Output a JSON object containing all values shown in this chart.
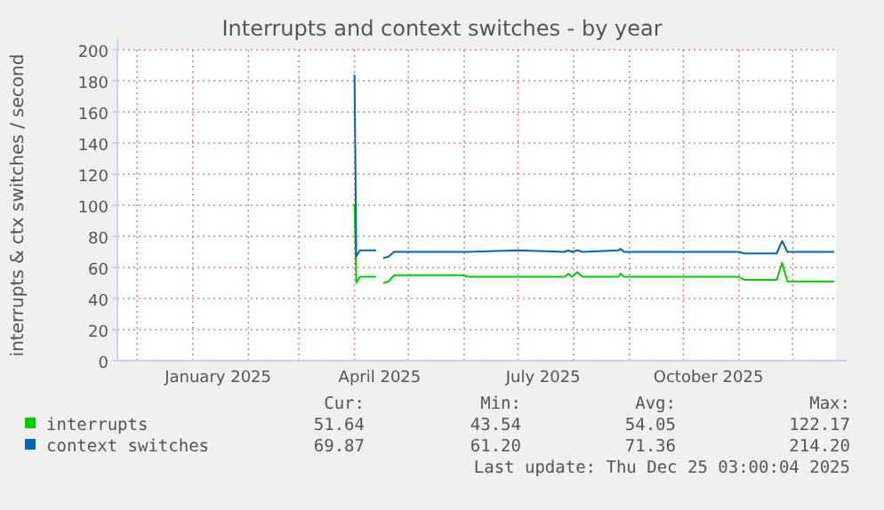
{
  "chart_data": {
    "type": "line",
    "title": "Interrupts and context switches - by year",
    "ylabel": "interrupts & ctx switches / second",
    "x": [
      "2025-04-01",
      "2025-04-02",
      "2025-04-04",
      "2025-04-13",
      "2025-04-15",
      "2025-04-17",
      "2025-04-20",
      "2025-04-23",
      "2025-05-15",
      "2025-05-31",
      "2025-06-03",
      "2025-07-01",
      "2025-07-27",
      "2025-07-29",
      "2025-07-31",
      "2025-08-03",
      "2025-08-06",
      "2025-08-26",
      "2025-08-27",
      "2025-08-29",
      "2025-11-01",
      "2025-11-04",
      "2025-11-22",
      "2025-11-25",
      "2025-11-28",
      "2025-12-10",
      "2025-12-24"
    ],
    "series": [
      {
        "name": "interrupts",
        "color": "#00cc00",
        "values": [
          101,
          50,
          54,
          54,
          null,
          50,
          51,
          55,
          55,
          55,
          54,
          54,
          54,
          56,
          54,
          57,
          54,
          54,
          56,
          54,
          54,
          52,
          52,
          63,
          51,
          51,
          51
        ]
      },
      {
        "name": "context switches",
        "color": "#0066b3",
        "values": [
          184,
          67,
          71,
          71,
          null,
          66,
          67,
          70,
          70,
          70,
          70,
          71,
          70,
          71,
          70,
          71,
          70,
          71,
          72,
          70,
          70,
          69,
          69,
          77,
          70,
          70,
          70
        ]
      }
    ],
    "xlim": [
      "2024-11-20",
      "2025-12-25"
    ],
    "xticks": [
      {
        "value": "2025-01-15",
        "label": "January 2025"
      },
      {
        "value": "2025-04-15",
        "label": "April 2025"
      },
      {
        "value": "2025-07-15",
        "label": "July 2025"
      },
      {
        "value": "2025-10-15",
        "label": "October 2025"
      }
    ],
    "ylim": [
      0,
      200
    ],
    "yticks": [
      0,
      20,
      40,
      60,
      80,
      100,
      120,
      140,
      160,
      180,
      200
    ],
    "grid": true,
    "legend": "bottom",
    "line_style": "solid",
    "annotations": [
      "Cur:",
      "Min:",
      "Avg:",
      "Max:",
      "51.64",
      "43.54",
      "54.05",
      "122.17",
      "69.87",
      "61.20",
      "71.36",
      "214.20",
      "Last update: Thu Dec 25 03:00:04 2025"
    ]
  }
}
